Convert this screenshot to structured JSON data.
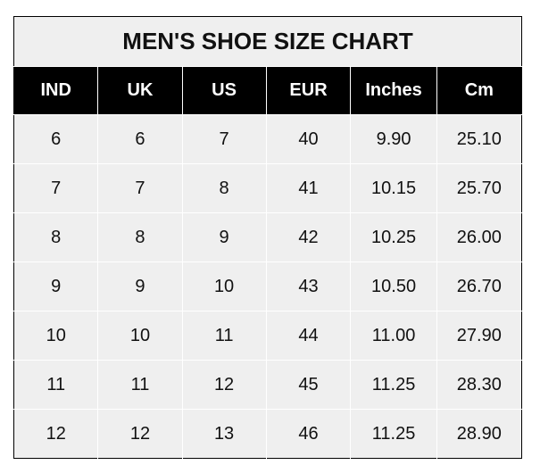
{
  "title": "MEN'S SHOE SIZE CHART",
  "headers": [
    "IND",
    "UK",
    "US",
    "EUR",
    "Inches",
    "Cm"
  ],
  "rows": [
    [
      "6",
      "6",
      "7",
      "40",
      "9.90",
      "25.10"
    ],
    [
      "7",
      "7",
      "8",
      "41",
      "10.15",
      "25.70"
    ],
    [
      "8",
      "8",
      "9",
      "42",
      "10.25",
      "26.00"
    ],
    [
      "9",
      "9",
      "10",
      "43",
      "10.50",
      "26.70"
    ],
    [
      "10",
      "10",
      "11",
      "44",
      "11.00",
      "27.90"
    ],
    [
      "11",
      "11",
      "12",
      "45",
      "11.25",
      "28.30"
    ],
    [
      "12",
      "12",
      "13",
      "46",
      "11.25",
      "28.90"
    ]
  ]
}
